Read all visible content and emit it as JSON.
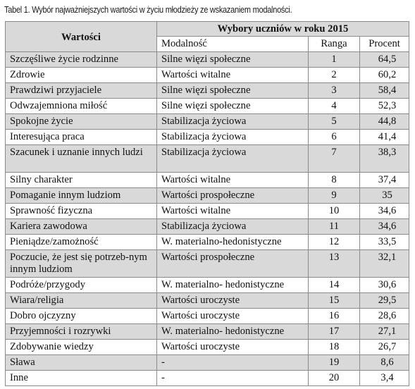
{
  "caption": "Tabel 1. Wybór najważniejszych wartości w życiu młodzieży ze wskazaniem modalności.",
  "header": {
    "col_values": "Wartości",
    "group": "Wybory uczniów w roku 2015",
    "col_modality": "Modalność",
    "col_rank": "Ranga",
    "col_percent": "Procent"
  },
  "rows": [
    {
      "value": "Szczęśliwe życie rodzinne",
      "modality": "Silne więzi społeczne",
      "rank": "1",
      "percent": "64,5"
    },
    {
      "value": "Zdrowie",
      "modality": "Wartości witalne",
      "rank": "2",
      "percent": "60,2"
    },
    {
      "value": "Prawdziwi przyjaciele",
      "modality": "Silne więzi społeczne",
      "rank": "3",
      "percent": "58,4"
    },
    {
      "value": "Odwzajemniona miłość",
      "modality": "Silne więzi społeczne",
      "rank": "4",
      "percent": "52,3"
    },
    {
      "value": "Spokojne życie",
      "modality": "Stabilizacja życiowa",
      "rank": "5",
      "percent": "44,8"
    },
    {
      "value": "Interesująca praca",
      "modality": "Stabilizacja życiowa",
      "rank": "6",
      "percent": "41,4"
    },
    {
      "value": "Szacunek i uznanie innych ludzi",
      "modality": "Stabilizacja życiowa",
      "rank": "7",
      "percent": "38,3"
    },
    {
      "value": "Silny charakter",
      "modality": "Wartości witalne",
      "rank": "8",
      "percent": "37,4"
    },
    {
      "value": "Pomaganie innym ludziom",
      "modality": "Wartości  prospołeczne",
      "rank": "9",
      "percent": "35"
    },
    {
      "value": "Sprawność fizyczna",
      "modality": "Wartości witalne",
      "rank": "10",
      "percent": "34,6"
    },
    {
      "value": "Kariera zawodowa",
      "modality": "Stabilizacja życiowa",
      "rank": "11",
      "percent": "34,6"
    },
    {
      "value": "Pieniądze/zamożność",
      "modality": "W. materialno-hedonistyczne",
      "rank": "12",
      "percent": "33,5"
    },
    {
      "value": "Poczucie, że jest się potrzeb-nym innym ludziom",
      "modality": "Wartości prospołeczne",
      "rank": "13",
      "percent": "32,1"
    },
    {
      "value": "Podróże/przygody",
      "modality": "W. materialno- hedonistyczne",
      "rank": "14",
      "percent": "30,6"
    },
    {
      "value": "Wiara/religia",
      "modality": "Wartości uroczyste",
      "rank": "15",
      "percent": "29,5"
    },
    {
      "value": "Dobro ojczyzny",
      "modality": "Wartości uroczyste",
      "rank": "16",
      "percent": "28,6"
    },
    {
      "value": "Przyjemności i rozrywki",
      "modality": "W. materialno- hedonistyczne",
      "rank": "17",
      "percent": "27,1"
    },
    {
      "value": "Zdobywanie wiedzy",
      "modality": "Wartości uroczyste",
      "rank": "18",
      "percent": "26,7"
    },
    {
      "value": "Sława",
      "modality": "-",
      "rank": "19",
      "percent": "8,6"
    },
    {
      "value": "Inne",
      "modality": "-",
      "rank": "20",
      "percent": "3,4"
    }
  ]
}
